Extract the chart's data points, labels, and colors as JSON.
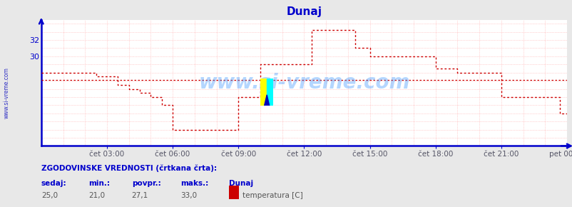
{
  "title": "Dunaj",
  "bg_color": "#e8e8e8",
  "plot_bg_color": "#ffffff",
  "grid_color": "#ffaaaa",
  "axis_color": "#0000cc",
  "line_color": "#cc0000",
  "text_color": "#0000cc",
  "watermark": "www.si-vreme.com",
  "xlabel_color": "#555555",
  "ylim": [
    19.0,
    34.5
  ],
  "yticks": [
    30,
    32
  ],
  "xlim": [
    0,
    288
  ],
  "xtick_labels": [
    "čet 03:00",
    "čet 06:00",
    "čet 09:00",
    "čet 12:00",
    "čet 15:00",
    "čet 18:00",
    "čet 21:00",
    "pet 00:00"
  ],
  "xtick_positions": [
    36,
    72,
    108,
    144,
    180,
    216,
    252,
    288
  ],
  "footer_text1": "ZGODOVINSKE VREDNOSTI (črtkana črta):",
  "footer_col_headers": [
    "sedaj:",
    "min.:",
    "povpr.:",
    "maks.:",
    "Dunaj"
  ],
  "footer_col_values": [
    "25,0",
    "21,0",
    "27,1",
    "33,0",
    "temperatura [C]"
  ],
  "legend_color": "#cc0000",
  "time_points": [
    0,
    5,
    10,
    15,
    20,
    25,
    30,
    36,
    42,
    48,
    54,
    60,
    66,
    72,
    76,
    80,
    84,
    88,
    92,
    96,
    100,
    108,
    112,
    116,
    120,
    126,
    132,
    138,
    144,
    148,
    152,
    156,
    160,
    164,
    168,
    172,
    176,
    180,
    184,
    188,
    192,
    196,
    204,
    210,
    216,
    222,
    228,
    234,
    240,
    246,
    252,
    258,
    264,
    268,
    272,
    276,
    280,
    284,
    288
  ],
  "temp_values": [
    28.0,
    28.0,
    28.0,
    28.0,
    28.0,
    28.0,
    27.5,
    27.5,
    26.5,
    26.0,
    25.5,
    25.0,
    24.0,
    21.0,
    21.0,
    21.0,
    21.0,
    21.0,
    21.0,
    21.0,
    21.0,
    25.0,
    25.0,
    25.0,
    29.0,
    29.0,
    29.0,
    29.0,
    29.0,
    33.2,
    33.2,
    33.2,
    33.2,
    33.2,
    33.2,
    31.0,
    31.0,
    30.0,
    30.0,
    30.0,
    30.0,
    30.0,
    30.0,
    30.0,
    28.5,
    28.5,
    28.0,
    28.0,
    28.0,
    28.0,
    25.0,
    25.0,
    25.0,
    25.0,
    25.0,
    25.0,
    25.0,
    23.0,
    23.0
  ],
  "avg_value": 27.1
}
